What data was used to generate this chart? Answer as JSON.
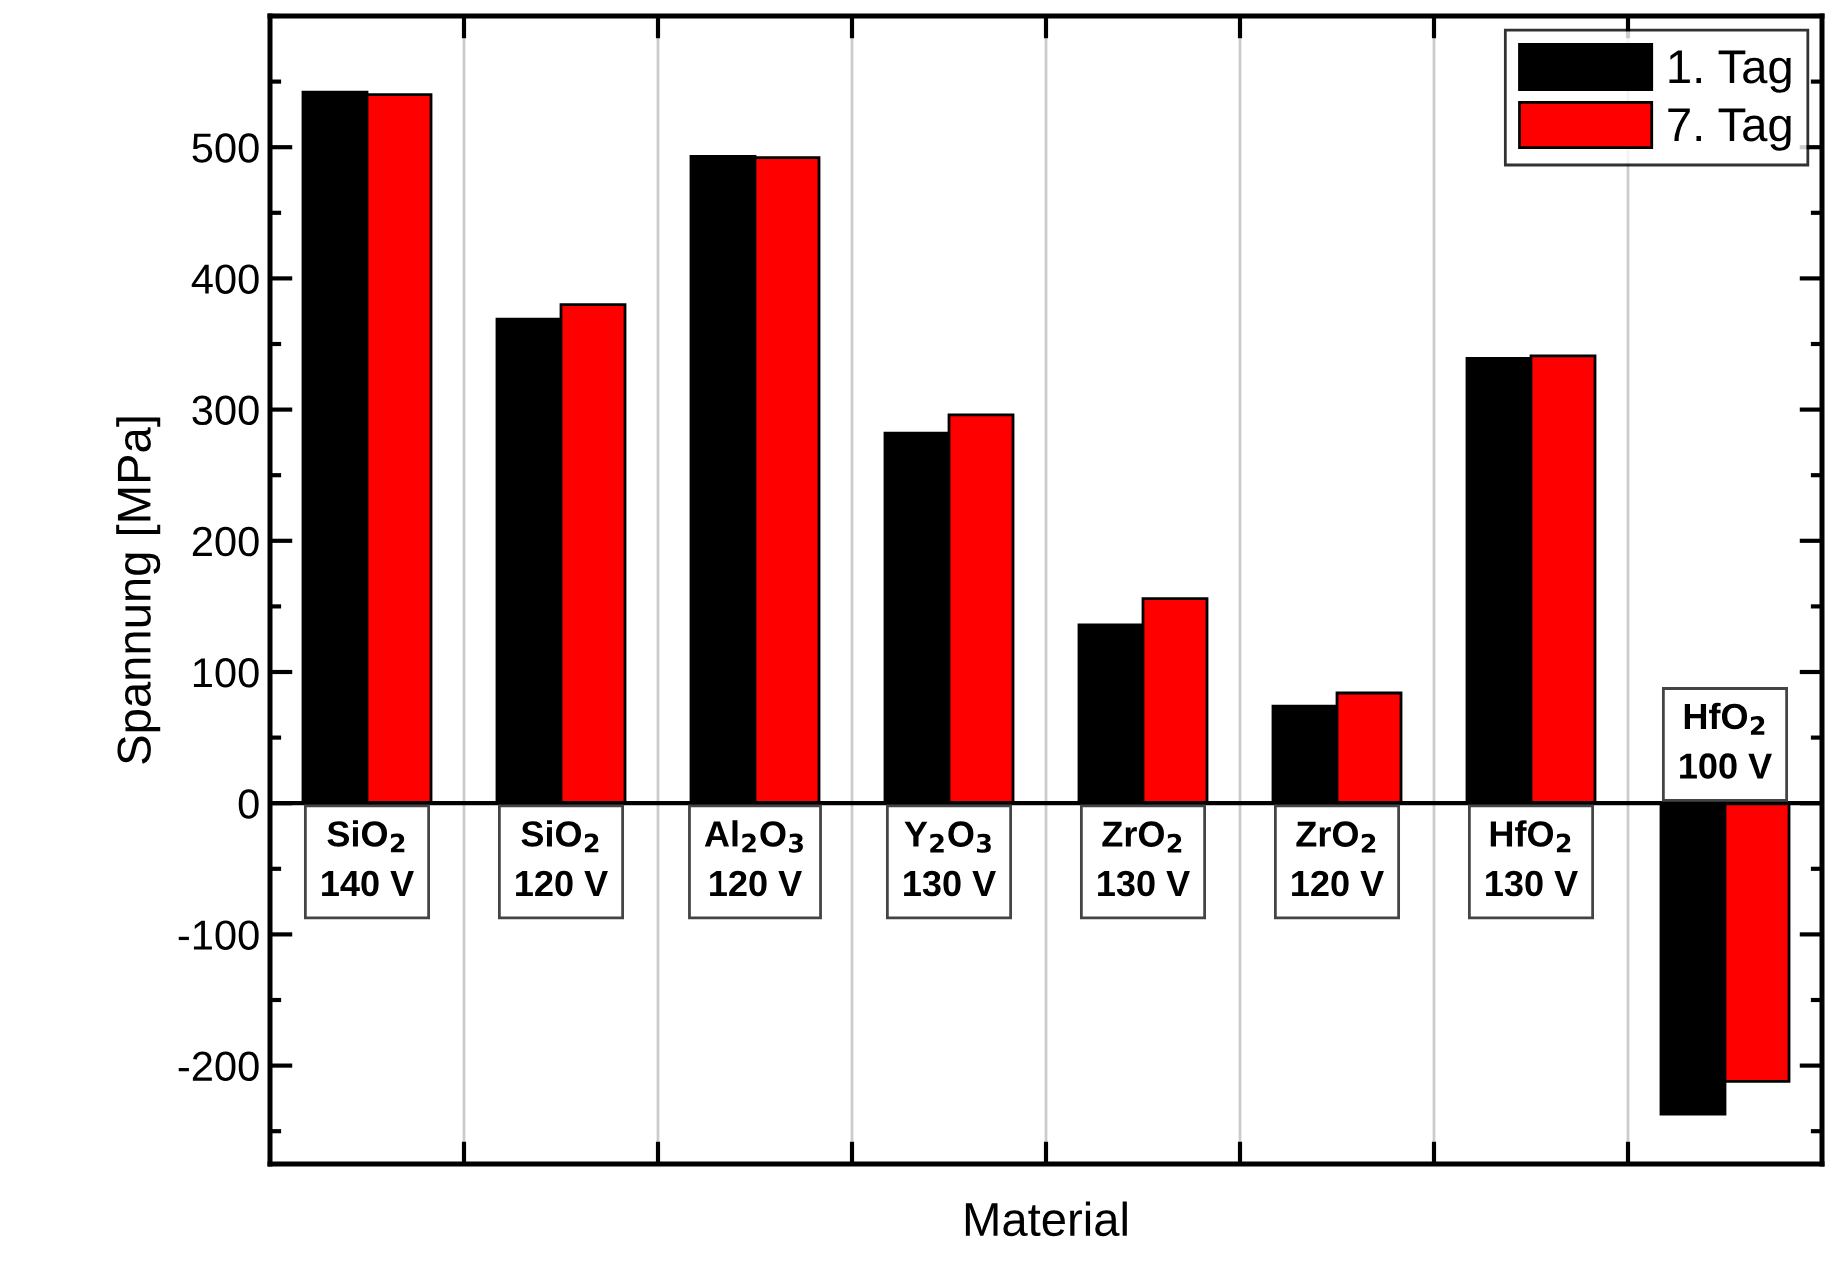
{
  "chart_data": {
    "type": "bar",
    "xlabel": "Material",
    "ylabel": "Spannung [MPa]",
    "categories": [
      "SiO$_{2}$\n140 V",
      "SiO$_{2}$\n120 V",
      "Al$_{2}$O$_{3}$\n120 V",
      "Y$_{2}$O$_{3}$\n130 V",
      "ZrO$_{2}$\n130 V",
      "ZrO$_{2}$\n120 V",
      "HfO$_{2}$\n130 V",
      "HfO$_{2}$\n100 V"
    ],
    "series": [
      {
        "name": "1. Tag",
        "color": "#000000",
        "values": [
          542,
          369,
          493,
          282,
          136,
          74,
          339,
          -237
        ]
      },
      {
        "name": "7. Tag",
        "color": "#ff0000",
        "values": [
          540,
          380,
          492,
          296,
          156,
          84,
          341,
          -212
        ]
      }
    ],
    "ylim": [
      -275,
      600
    ],
    "yticks": [
      -200,
      -100,
      0,
      100,
      200,
      300,
      400,
      500
    ],
    "grid": "x",
    "legend": "top right"
  }
}
